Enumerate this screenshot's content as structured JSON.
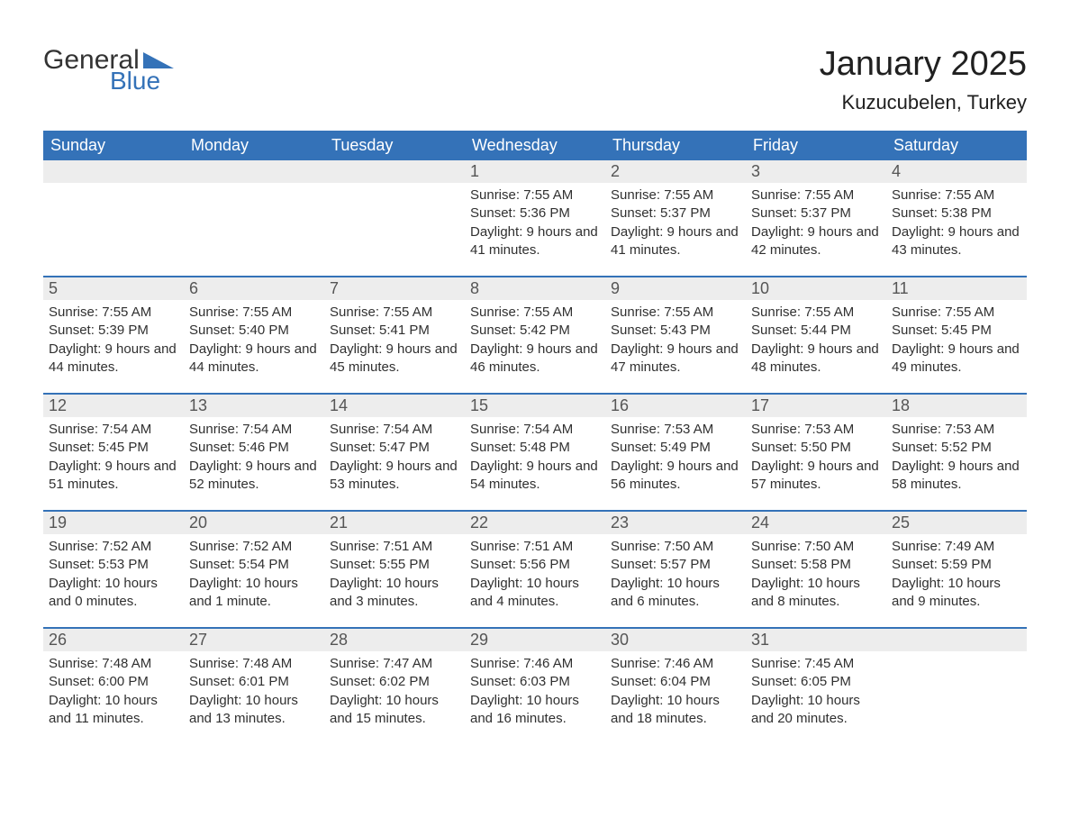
{
  "logo": {
    "text1": "General",
    "text2": "Blue",
    "triangle_color": "#3472b8"
  },
  "title": "January 2025",
  "location": "Kuzucubelen, Turkey",
  "header_bg": "#3472b8",
  "header_text_color": "#ffffff",
  "daynum_bg": "#ededed",
  "daynum_text_color": "#555555",
  "body_text_color": "#303030",
  "divider_color": "#3472b8",
  "title_fontsize": 38,
  "location_fontsize": 22,
  "weekday_fontsize": 18,
  "daynum_fontsize": 18,
  "body_fontsize": 15,
  "weekdays": [
    "Sunday",
    "Monday",
    "Tuesday",
    "Wednesday",
    "Thursday",
    "Friday",
    "Saturday"
  ],
  "weeks": [
    {
      "days": [
        {
          "num": "",
          "sunrise": "",
          "sunset": "",
          "daylight": ""
        },
        {
          "num": "",
          "sunrise": "",
          "sunset": "",
          "daylight": ""
        },
        {
          "num": "",
          "sunrise": "",
          "sunset": "",
          "daylight": ""
        },
        {
          "num": "1",
          "sunrise": "Sunrise: 7:55 AM",
          "sunset": "Sunset: 5:36 PM",
          "daylight": "Daylight: 9 hours and 41 minutes."
        },
        {
          "num": "2",
          "sunrise": "Sunrise: 7:55 AM",
          "sunset": "Sunset: 5:37 PM",
          "daylight": "Daylight: 9 hours and 41 minutes."
        },
        {
          "num": "3",
          "sunrise": "Sunrise: 7:55 AM",
          "sunset": "Sunset: 5:37 PM",
          "daylight": "Daylight: 9 hours and 42 minutes."
        },
        {
          "num": "4",
          "sunrise": "Sunrise: 7:55 AM",
          "sunset": "Sunset: 5:38 PM",
          "daylight": "Daylight: 9 hours and 43 minutes."
        }
      ]
    },
    {
      "days": [
        {
          "num": "5",
          "sunrise": "Sunrise: 7:55 AM",
          "sunset": "Sunset: 5:39 PM",
          "daylight": "Daylight: 9 hours and 44 minutes."
        },
        {
          "num": "6",
          "sunrise": "Sunrise: 7:55 AM",
          "sunset": "Sunset: 5:40 PM",
          "daylight": "Daylight: 9 hours and 44 minutes."
        },
        {
          "num": "7",
          "sunrise": "Sunrise: 7:55 AM",
          "sunset": "Sunset: 5:41 PM",
          "daylight": "Daylight: 9 hours and 45 minutes."
        },
        {
          "num": "8",
          "sunrise": "Sunrise: 7:55 AM",
          "sunset": "Sunset: 5:42 PM",
          "daylight": "Daylight: 9 hours and 46 minutes."
        },
        {
          "num": "9",
          "sunrise": "Sunrise: 7:55 AM",
          "sunset": "Sunset: 5:43 PM",
          "daylight": "Daylight: 9 hours and 47 minutes."
        },
        {
          "num": "10",
          "sunrise": "Sunrise: 7:55 AM",
          "sunset": "Sunset: 5:44 PM",
          "daylight": "Daylight: 9 hours and 48 minutes."
        },
        {
          "num": "11",
          "sunrise": "Sunrise: 7:55 AM",
          "sunset": "Sunset: 5:45 PM",
          "daylight": "Daylight: 9 hours and 49 minutes."
        }
      ]
    },
    {
      "days": [
        {
          "num": "12",
          "sunrise": "Sunrise: 7:54 AM",
          "sunset": "Sunset: 5:45 PM",
          "daylight": "Daylight: 9 hours and 51 minutes."
        },
        {
          "num": "13",
          "sunrise": "Sunrise: 7:54 AM",
          "sunset": "Sunset: 5:46 PM",
          "daylight": "Daylight: 9 hours and 52 minutes."
        },
        {
          "num": "14",
          "sunrise": "Sunrise: 7:54 AM",
          "sunset": "Sunset: 5:47 PM",
          "daylight": "Daylight: 9 hours and 53 minutes."
        },
        {
          "num": "15",
          "sunrise": "Sunrise: 7:54 AM",
          "sunset": "Sunset: 5:48 PM",
          "daylight": "Daylight: 9 hours and 54 minutes."
        },
        {
          "num": "16",
          "sunrise": "Sunrise: 7:53 AM",
          "sunset": "Sunset: 5:49 PM",
          "daylight": "Daylight: 9 hours and 56 minutes."
        },
        {
          "num": "17",
          "sunrise": "Sunrise: 7:53 AM",
          "sunset": "Sunset: 5:50 PM",
          "daylight": "Daylight: 9 hours and 57 minutes."
        },
        {
          "num": "18",
          "sunrise": "Sunrise: 7:53 AM",
          "sunset": "Sunset: 5:52 PM",
          "daylight": "Daylight: 9 hours and 58 minutes."
        }
      ]
    },
    {
      "days": [
        {
          "num": "19",
          "sunrise": "Sunrise: 7:52 AM",
          "sunset": "Sunset: 5:53 PM",
          "daylight": "Daylight: 10 hours and 0 minutes."
        },
        {
          "num": "20",
          "sunrise": "Sunrise: 7:52 AM",
          "sunset": "Sunset: 5:54 PM",
          "daylight": "Daylight: 10 hours and 1 minute."
        },
        {
          "num": "21",
          "sunrise": "Sunrise: 7:51 AM",
          "sunset": "Sunset: 5:55 PM",
          "daylight": "Daylight: 10 hours and 3 minutes."
        },
        {
          "num": "22",
          "sunrise": "Sunrise: 7:51 AM",
          "sunset": "Sunset: 5:56 PM",
          "daylight": "Daylight: 10 hours and 4 minutes."
        },
        {
          "num": "23",
          "sunrise": "Sunrise: 7:50 AM",
          "sunset": "Sunset: 5:57 PM",
          "daylight": "Daylight: 10 hours and 6 minutes."
        },
        {
          "num": "24",
          "sunrise": "Sunrise: 7:50 AM",
          "sunset": "Sunset: 5:58 PM",
          "daylight": "Daylight: 10 hours and 8 minutes."
        },
        {
          "num": "25",
          "sunrise": "Sunrise: 7:49 AM",
          "sunset": "Sunset: 5:59 PM",
          "daylight": "Daylight: 10 hours and 9 minutes."
        }
      ]
    },
    {
      "days": [
        {
          "num": "26",
          "sunrise": "Sunrise: 7:48 AM",
          "sunset": "Sunset: 6:00 PM",
          "daylight": "Daylight: 10 hours and 11 minutes."
        },
        {
          "num": "27",
          "sunrise": "Sunrise: 7:48 AM",
          "sunset": "Sunset: 6:01 PM",
          "daylight": "Daylight: 10 hours and 13 minutes."
        },
        {
          "num": "28",
          "sunrise": "Sunrise: 7:47 AM",
          "sunset": "Sunset: 6:02 PM",
          "daylight": "Daylight: 10 hours and 15 minutes."
        },
        {
          "num": "29",
          "sunrise": "Sunrise: 7:46 AM",
          "sunset": "Sunset: 6:03 PM",
          "daylight": "Daylight: 10 hours and 16 minutes."
        },
        {
          "num": "30",
          "sunrise": "Sunrise: 7:46 AM",
          "sunset": "Sunset: 6:04 PM",
          "daylight": "Daylight: 10 hours and 18 minutes."
        },
        {
          "num": "31",
          "sunrise": "Sunrise: 7:45 AM",
          "sunset": "Sunset: 6:05 PM",
          "daylight": "Daylight: 10 hours and 20 minutes."
        },
        {
          "num": "",
          "sunrise": "",
          "sunset": "",
          "daylight": ""
        }
      ]
    }
  ]
}
